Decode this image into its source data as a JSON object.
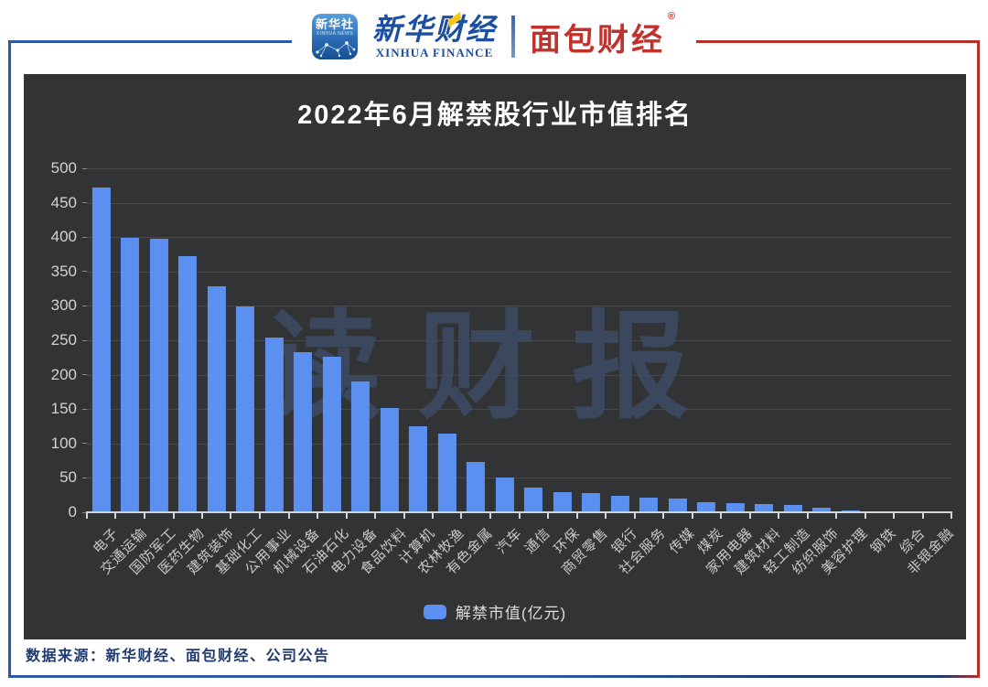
{
  "header": {
    "xinhua_app": {
      "line1": "新华社",
      "line2": "XINHUA NEWS"
    },
    "xinhua_finance": {
      "cn": "新华财经",
      "en": "XINHUA FINANCE"
    },
    "mianbao": {
      "name": "面包财经",
      "reg": "®"
    }
  },
  "chart_data": {
    "type": "bar",
    "title": "2022年6月解禁股行业市值排名",
    "series_name": "解禁市值(亿元)",
    "categories": [
      "电子",
      "交通运输",
      "国防军工",
      "医药生物",
      "建筑装饰",
      "基础化工",
      "公用事业",
      "机械设备",
      "石油石化",
      "电力设备",
      "食品饮料",
      "计算机",
      "农林牧渔",
      "有色金属",
      "汽车",
      "通信",
      "环保",
      "商贸零售",
      "银行",
      "社会服务",
      "传媒",
      "煤炭",
      "家用电器",
      "建筑材料",
      "轻工制造",
      "纺织服饰",
      "美容护理",
      "钢铁",
      "综合",
      "非银金融"
    ],
    "values": [
      472,
      399,
      398,
      372,
      328,
      299,
      254,
      233,
      226,
      190,
      152,
      125,
      114,
      73,
      51,
      36,
      29,
      28,
      24,
      21,
      20,
      14,
      13,
      12,
      10,
      7,
      3,
      1,
      0.8,
      0.5
    ],
    "ylim": [
      0,
      500
    ],
    "yticks": [
      0,
      50,
      100,
      150,
      200,
      250,
      300,
      350,
      400,
      450,
      500
    ],
    "grid": "horizontal",
    "legend_position": "bottom",
    "bar_color": "#5b8ff0",
    "background": "#323335"
  },
  "watermark": {
    "text": "读财报"
  },
  "footer": {
    "source": "数据来源：新华财经、面包财经、公司公告"
  }
}
